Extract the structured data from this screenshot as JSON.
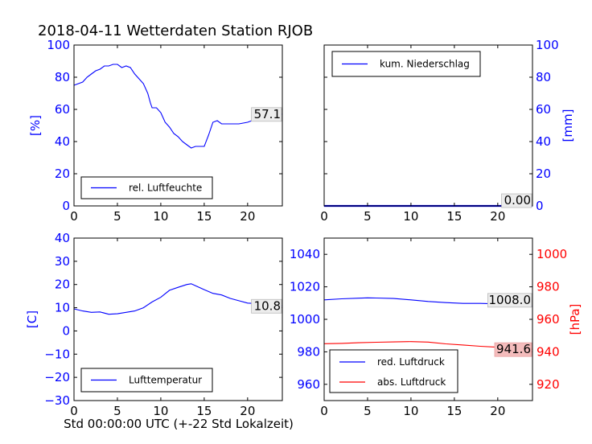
{
  "title": "2018-04-11 Wetterdaten Station RJOB",
  "xlabel_bottom": "Std 00:00:00 UTC (+-22 Std Lokalzeit)",
  "colors": {
    "blue": "#0000ff",
    "red": "#ff0000",
    "pressure_box": "#f4bcbc"
  },
  "chart_data": [
    {
      "type": "line",
      "panel": "top-left",
      "ylabel": "[%]",
      "xlim": [
        0,
        24
      ],
      "ylim": [
        0,
        100
      ],
      "xticks": [
        0,
        5,
        10,
        15,
        20
      ],
      "yticks": [
        0,
        20,
        40,
        60,
        80,
        100
      ],
      "legend": "lower-left",
      "last_value_label": "57.1",
      "series": [
        {
          "name": "rel. Luftfeuchte",
          "color": "#0000ff",
          "x": [
            0,
            0.5,
            1,
            1.5,
            2,
            2.5,
            3,
            3.5,
            4,
            4.5,
            5,
            5.5,
            6,
            6.5,
            7,
            7.5,
            8,
            8.5,
            8.8,
            9,
            9.5,
            10,
            10.5,
            11,
            11.5,
            12,
            12.5,
            13,
            13.5,
            14,
            14.5,
            15,
            15.5,
            16,
            16.5,
            17,
            18,
            19,
            20,
            21,
            22,
            23,
            24
          ],
          "y": [
            75,
            76,
            77,
            80,
            82,
            84,
            85,
            87,
            87,
            88,
            88,
            86,
            87,
            86,
            82,
            79,
            76,
            70,
            64,
            61,
            61,
            58,
            52,
            49,
            45,
            43,
            40,
            38,
            36,
            37,
            37,
            37,
            44,
            52,
            53,
            51,
            51,
            51,
            52,
            54,
            55,
            56,
            57.1
          ]
        }
      ]
    },
    {
      "type": "line",
      "panel": "top-right",
      "ylabel": "[mm]",
      "xlim": [
        0,
        24
      ],
      "ylim": [
        0,
        100
      ],
      "xticks": [
        0,
        5,
        10,
        15,
        20
      ],
      "yticks": [
        0,
        20,
        40,
        60,
        80,
        100
      ],
      "legend": "top-left",
      "last_value_label": "0.00",
      "series": [
        {
          "name": "kum. Niederschlag",
          "color": "#0000ff",
          "x": [
            0,
            24
          ],
          "y": [
            0,
            0
          ]
        }
      ]
    },
    {
      "type": "line",
      "panel": "bottom-left",
      "ylabel": "[C]",
      "xlim": [
        0,
        24
      ],
      "ylim": [
        -30,
        40
      ],
      "xticks": [
        0,
        5,
        10,
        15,
        20
      ],
      "yticks": [
        -30,
        -20,
        -10,
        0,
        10,
        20,
        30,
        40
      ],
      "legend": "lower-left",
      "last_value_label": "10.8",
      "series": [
        {
          "name": "Lufttemperatur",
          "color": "#0000ff",
          "x": [
            0,
            1,
            2,
            3,
            4,
            5,
            6,
            7,
            8,
            9,
            10,
            11,
            12,
            13,
            13.5,
            14,
            15,
            16,
            17,
            18,
            19,
            20,
            21,
            22,
            23,
            24
          ],
          "y": [
            9.5,
            8.6,
            8.0,
            8.2,
            7.2,
            7.4,
            8.0,
            8.6,
            10.0,
            12.5,
            14.5,
            17.5,
            18.8,
            20.0,
            20.3,
            19.5,
            17.8,
            16.2,
            15.5,
            14.0,
            13.0,
            12.0,
            11.8,
            11.4,
            11.0,
            10.8
          ]
        }
      ]
    },
    {
      "type": "line",
      "panel": "bottom-right",
      "ylabel": "[hPa]",
      "xlim": [
        0,
        24
      ],
      "ylim_left": [
        950,
        1050
      ],
      "ylim_right": [
        910,
        1010
      ],
      "xticks": [
        0,
        5,
        10,
        15,
        20
      ],
      "yticks_left": [
        960,
        980,
        1000,
        1020,
        1040
      ],
      "yticks_right": [
        920,
        940,
        960,
        980,
        1000
      ],
      "legend": "lower-left",
      "last_value_labels": [
        "1008.0",
        "941.6"
      ],
      "series": [
        {
          "name": "red. Luftdruck",
          "color": "#0000ff",
          "axis": "left",
          "x": [
            0,
            2,
            4,
            5,
            6,
            8,
            10,
            12,
            14,
            16,
            18,
            20,
            22,
            24
          ],
          "y": [
            1012.0,
            1012.6,
            1013.0,
            1013.2,
            1013.1,
            1012.8,
            1012.0,
            1011.0,
            1010.3,
            1009.8,
            1009.8,
            1009.5,
            1008.8,
            1008.0
          ]
        },
        {
          "name": "abs. Luftdruck",
          "color": "#ff0000",
          "axis": "right",
          "x": [
            0,
            2,
            4,
            6,
            8,
            10,
            12,
            14,
            16,
            18,
            20,
            22,
            24
          ],
          "y": [
            945.0,
            945.2,
            945.6,
            945.9,
            946.1,
            946.3,
            946.0,
            944.9,
            944.2,
            943.4,
            942.8,
            942.3,
            941.6
          ]
        }
      ]
    }
  ]
}
